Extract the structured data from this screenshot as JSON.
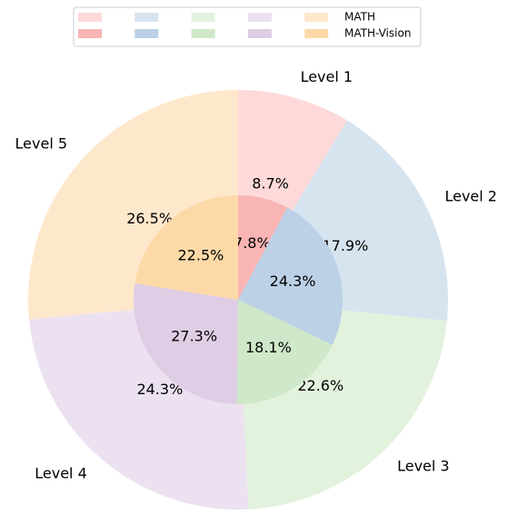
{
  "chart_data": {
    "type": "pie",
    "categories": [
      "Level 1",
      "Level 2",
      "Level 3",
      "Level 4",
      "Level 5"
    ],
    "series": [
      {
        "name": "MATH",
        "ring": "outer",
        "values": [
          8.7,
          17.9,
          22.6,
          24.3,
          26.5
        ],
        "value_labels": [
          "8.7%",
          "17.9%",
          "22.6%",
          "24.3%",
          "26.5%"
        ],
        "colors": [
          "#fdd9d9",
          "#d6e4f0",
          "#e2f2dd",
          "#ece1f0",
          "#fee8cc"
        ]
      },
      {
        "name": "MATH-Vision",
        "ring": "inner",
        "values": [
          7.8,
          24.3,
          18.1,
          27.3,
          22.5
        ],
        "value_labels": [
          "7.8%",
          "24.3%",
          "18.1%",
          "27.3%",
          "22.5%"
        ],
        "colors": [
          "#f9b4b4",
          "#bcd1e6",
          "#cfe8c9",
          "#dfcde5",
          "#fdd9a8"
        ]
      }
    ],
    "legend": "upper center"
  }
}
